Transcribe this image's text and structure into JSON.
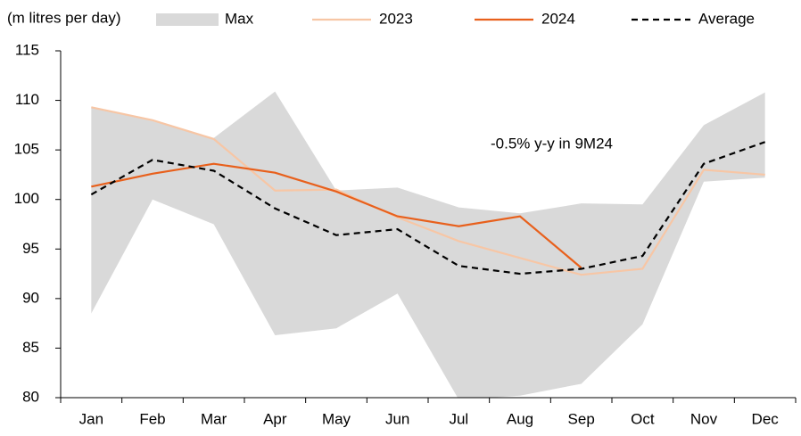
{
  "chart_data": {
    "type": "line",
    "y_label": "(m litres per day)",
    "annotation": "-0.5% y-y in 9M24",
    "categories": [
      "Jan",
      "Feb",
      "Mar",
      "Apr",
      "May",
      "Jun",
      "Jul",
      "Aug",
      "Sep",
      "Oct",
      "Nov",
      "Dec"
    ],
    "range": {
      "name": "Max",
      "color": "#d9d9d9",
      "upper": [
        109.3,
        107.9,
        106.2,
        110.9,
        100.9,
        101.2,
        99.2,
        98.6,
        99.6,
        99.5,
        107.5,
        110.8
      ],
      "lower": [
        88.5,
        100,
        97.5,
        86.3,
        87,
        90.5,
        79.8,
        80.2,
        81.4,
        87.4,
        101.8,
        102.2
      ]
    },
    "series": [
      {
        "name": "2023",
        "color": "#f7c6a5",
        "dashed": false,
        "values": [
          109.3,
          108,
          106.1,
          100.9,
          101,
          98.2,
          95.8,
          94.1,
          92.4,
          93,
          103,
          102.5
        ]
      },
      {
        "name": "2024",
        "color": "#e8601c",
        "dashed": false,
        "values": [
          101.3,
          102.6,
          103.6,
          102.7,
          100.8,
          98.3,
          97.3,
          98.3,
          93.1,
          null,
          null,
          null
        ]
      },
      {
        "name": "Average",
        "color": "#000000",
        "dashed": true,
        "values": [
          100.5,
          104,
          102.9,
          99.1,
          96.4,
          97,
          93.3,
          92.5,
          93,
          94.3,
          103.6,
          105.8
        ]
      }
    ],
    "ylim": [
      80,
      115
    ],
    "yticks": [
      80,
      85,
      90,
      95,
      100,
      105,
      110,
      115
    ]
  }
}
